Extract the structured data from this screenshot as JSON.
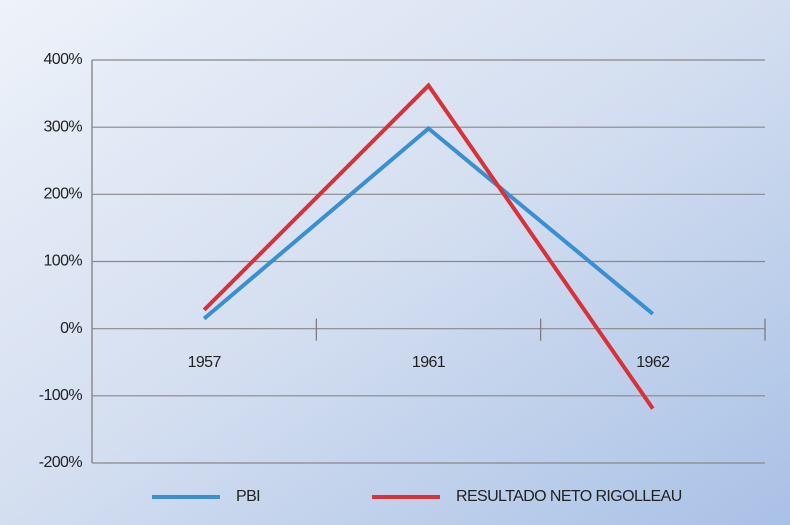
{
  "chart_data": {
    "type": "line",
    "categories": [
      "1957",
      "1961",
      "1962"
    ],
    "series": [
      {
        "name": "PBI",
        "color": "#3a8fd1",
        "values": [
          15,
          298,
          22
        ]
      },
      {
        "name": "RESULTADO NETO RIGOLLEAU",
        "color": "#d9313a",
        "values": [
          28,
          362,
          -119
        ]
      }
    ],
    "ylim": [
      -200,
      400
    ],
    "yticks": [
      {
        "value": -200,
        "label": "-200%"
      },
      {
        "value": -100,
        "label": "-100%"
      },
      {
        "value": 0,
        "label": "0%"
      },
      {
        "value": 100,
        "label": "100%"
      },
      {
        "value": 200,
        "label": "200%"
      },
      {
        "value": 300,
        "label": "300%"
      },
      {
        "value": 400,
        "label": "400%"
      }
    ],
    "grid": true,
    "legend": "bottom"
  }
}
